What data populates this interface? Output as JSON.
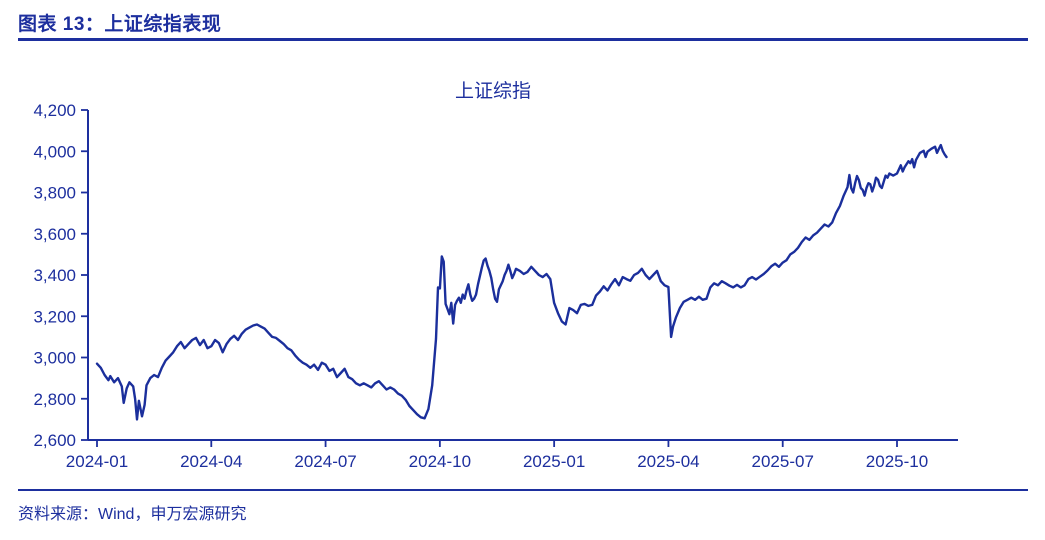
{
  "header": {
    "title": "图表 13：上证综指表现"
  },
  "footer": {
    "source": "资料来源：Wind，申万宏源研究"
  },
  "colors": {
    "navy": "#1d2f9e",
    "line": "#1b2f9c",
    "background": "#ffffff"
  },
  "chart_data": {
    "type": "line",
    "title": "上证综指",
    "series_name": "上证综指",
    "xlabel": "",
    "ylabel": "",
    "grid": false,
    "legend": "none",
    "ylim": [
      2600,
      4200
    ],
    "y_ticks": [
      2600,
      2800,
      3000,
      3200,
      3400,
      3600,
      3800,
      4000,
      4200
    ],
    "y_tick_labels": [
      "2,600",
      "2,800",
      "3,000",
      "3,200",
      "3,400",
      "3,600",
      "3,800",
      "4,000",
      "4,200"
    ],
    "x_tick_labels": [
      "2024-01",
      "2024-04",
      "2024-07",
      "2024-10",
      "2025-01",
      "2025-04",
      "2025-07",
      "2025-10"
    ],
    "x_tick_positions": [
      0,
      3,
      6,
      9,
      12,
      15,
      18,
      21
    ],
    "x_unit": "months_since_2024_01",
    "xlim": [
      0,
      22.6
    ],
    "points": [
      [
        0.0,
        2970
      ],
      [
        0.1,
        2950
      ],
      [
        0.2,
        2915
      ],
      [
        0.3,
        2890
      ],
      [
        0.35,
        2910
      ],
      [
        0.45,
        2880
      ],
      [
        0.55,
        2900
      ],
      [
        0.65,
        2860
      ],
      [
        0.7,
        2780
      ],
      [
        0.78,
        2850
      ],
      [
        0.85,
        2880
      ],
      [
        0.95,
        2860
      ],
      [
        1.0,
        2800
      ],
      [
        1.05,
        2700
      ],
      [
        1.1,
        2790
      ],
      [
        1.18,
        2715
      ],
      [
        1.25,
        2770
      ],
      [
        1.3,
        2865
      ],
      [
        1.4,
        2900
      ],
      [
        1.5,
        2915
      ],
      [
        1.6,
        2905
      ],
      [
        1.7,
        2950
      ],
      [
        1.8,
        2985
      ],
      [
        1.9,
        3005
      ],
      [
        2.0,
        3025
      ],
      [
        2.1,
        3055
      ],
      [
        2.2,
        3075
      ],
      [
        2.3,
        3045
      ],
      [
        2.4,
        3065
      ],
      [
        2.5,
        3085
      ],
      [
        2.6,
        3095
      ],
      [
        2.7,
        3060
      ],
      [
        2.8,
        3085
      ],
      [
        2.9,
        3045
      ],
      [
        3.0,
        3055
      ],
      [
        3.1,
        3085
      ],
      [
        3.2,
        3070
      ],
      [
        3.3,
        3025
      ],
      [
        3.4,
        3065
      ],
      [
        3.5,
        3090
      ],
      [
        3.6,
        3105
      ],
      [
        3.7,
        3085
      ],
      [
        3.8,
        3115
      ],
      [
        3.9,
        3135
      ],
      [
        4.0,
        3145
      ],
      [
        4.1,
        3155
      ],
      [
        4.2,
        3160
      ],
      [
        4.3,
        3150
      ],
      [
        4.4,
        3140
      ],
      [
        4.5,
        3120
      ],
      [
        4.6,
        3100
      ],
      [
        4.7,
        3095
      ],
      [
        4.8,
        3080
      ],
      [
        4.9,
        3065
      ],
      [
        5.0,
        3045
      ],
      [
        5.1,
        3035
      ],
      [
        5.2,
        3010
      ],
      [
        5.3,
        2990
      ],
      [
        5.4,
        2975
      ],
      [
        5.5,
        2965
      ],
      [
        5.6,
        2950
      ],
      [
        5.7,
        2965
      ],
      [
        5.8,
        2940
      ],
      [
        5.9,
        2975
      ],
      [
        6.0,
        2965
      ],
      [
        6.1,
        2935
      ],
      [
        6.2,
        2945
      ],
      [
        6.3,
        2905
      ],
      [
        6.4,
        2925
      ],
      [
        6.5,
        2945
      ],
      [
        6.6,
        2905
      ],
      [
        6.7,
        2895
      ],
      [
        6.8,
        2875
      ],
      [
        6.9,
        2865
      ],
      [
        7.0,
        2875
      ],
      [
        7.1,
        2865
      ],
      [
        7.2,
        2855
      ],
      [
        7.3,
        2875
      ],
      [
        7.4,
        2885
      ],
      [
        7.5,
        2865
      ],
      [
        7.6,
        2845
      ],
      [
        7.7,
        2855
      ],
      [
        7.8,
        2845
      ],
      [
        7.9,
        2825
      ],
      [
        8.0,
        2815
      ],
      [
        8.1,
        2795
      ],
      [
        8.2,
        2765
      ],
      [
        8.3,
        2745
      ],
      [
        8.4,
        2725
      ],
      [
        8.5,
        2710
      ],
      [
        8.6,
        2705
      ],
      [
        8.7,
        2750
      ],
      [
        8.8,
        2865
      ],
      [
        8.9,
        3090
      ],
      [
        8.95,
        3340
      ],
      [
        9.0,
        3335
      ],
      [
        9.05,
        3490
      ],
      [
        9.1,
        3465
      ],
      [
        9.15,
        3260
      ],
      [
        9.2,
        3235
      ],
      [
        9.25,
        3210
      ],
      [
        9.3,
        3265
      ],
      [
        9.35,
        3165
      ],
      [
        9.4,
        3255
      ],
      [
        9.45,
        3275
      ],
      [
        9.5,
        3290
      ],
      [
        9.55,
        3265
      ],
      [
        9.6,
        3305
      ],
      [
        9.65,
        3285
      ],
      [
        9.7,
        3325
      ],
      [
        9.75,
        3355
      ],
      [
        9.8,
        3305
      ],
      [
        9.85,
        3275
      ],
      [
        9.9,
        3285
      ],
      [
        9.95,
        3305
      ],
      [
        10.0,
        3355
      ],
      [
        10.1,
        3435
      ],
      [
        10.15,
        3470
      ],
      [
        10.2,
        3480
      ],
      [
        10.25,
        3445
      ],
      [
        10.3,
        3420
      ],
      [
        10.35,
        3385
      ],
      [
        10.4,
        3330
      ],
      [
        10.45,
        3285
      ],
      [
        10.5,
        3270
      ],
      [
        10.55,
        3330
      ],
      [
        10.6,
        3350
      ],
      [
        10.65,
        3370
      ],
      [
        10.7,
        3400
      ],
      [
        10.75,
        3420
      ],
      [
        10.8,
        3450
      ],
      [
        10.85,
        3420
      ],
      [
        10.9,
        3385
      ],
      [
        10.95,
        3405
      ],
      [
        11.0,
        3430
      ],
      [
        11.1,
        3420
      ],
      [
        11.2,
        3405
      ],
      [
        11.3,
        3415
      ],
      [
        11.4,
        3440
      ],
      [
        11.5,
        3420
      ],
      [
        11.6,
        3400
      ],
      [
        11.7,
        3390
      ],
      [
        11.8,
        3405
      ],
      [
        11.9,
        3380
      ],
      [
        12.0,
        3265
      ],
      [
        12.1,
        3215
      ],
      [
        12.2,
        3175
      ],
      [
        12.3,
        3160
      ],
      [
        12.4,
        3240
      ],
      [
        12.5,
        3230
      ],
      [
        12.6,
        3215
      ],
      [
        12.7,
        3255
      ],
      [
        12.8,
        3260
      ],
      [
        12.9,
        3250
      ],
      [
        13.0,
        3255
      ],
      [
        13.1,
        3300
      ],
      [
        13.2,
        3320
      ],
      [
        13.3,
        3345
      ],
      [
        13.4,
        3325
      ],
      [
        13.5,
        3355
      ],
      [
        13.6,
        3380
      ],
      [
        13.7,
        3350
      ],
      [
        13.8,
        3390
      ],
      [
        13.9,
        3380
      ],
      [
        14.0,
        3372
      ],
      [
        14.1,
        3400
      ],
      [
        14.2,
        3410
      ],
      [
        14.3,
        3430
      ],
      [
        14.4,
        3400
      ],
      [
        14.5,
        3380
      ],
      [
        14.6,
        3400
      ],
      [
        14.7,
        3420
      ],
      [
        14.8,
        3370
      ],
      [
        14.9,
        3350
      ],
      [
        15.0,
        3342
      ],
      [
        15.07,
        3100
      ],
      [
        15.12,
        3150
      ],
      [
        15.2,
        3195
      ],
      [
        15.3,
        3240
      ],
      [
        15.4,
        3270
      ],
      [
        15.5,
        3280
      ],
      [
        15.6,
        3290
      ],
      [
        15.7,
        3280
      ],
      [
        15.8,
        3295
      ],
      [
        15.9,
        3280
      ],
      [
        16.0,
        3285
      ],
      [
        16.1,
        3340
      ],
      [
        16.2,
        3360
      ],
      [
        16.3,
        3350
      ],
      [
        16.4,
        3370
      ],
      [
        16.5,
        3360
      ],
      [
        16.6,
        3348
      ],
      [
        16.7,
        3340
      ],
      [
        16.8,
        3352
      ],
      [
        16.9,
        3340
      ],
      [
        17.0,
        3350
      ],
      [
        17.1,
        3380
      ],
      [
        17.2,
        3390
      ],
      [
        17.3,
        3378
      ],
      [
        17.4,
        3392
      ],
      [
        17.5,
        3405
      ],
      [
        17.6,
        3422
      ],
      [
        17.7,
        3442
      ],
      [
        17.8,
        3455
      ],
      [
        17.9,
        3440
      ],
      [
        18.0,
        3460
      ],
      [
        18.1,
        3472
      ],
      [
        18.2,
        3500
      ],
      [
        18.3,
        3512
      ],
      [
        18.4,
        3532
      ],
      [
        18.5,
        3560
      ],
      [
        18.6,
        3582
      ],
      [
        18.7,
        3570
      ],
      [
        18.8,
        3592
      ],
      [
        18.9,
        3605
      ],
      [
        19.0,
        3625
      ],
      [
        19.1,
        3645
      ],
      [
        19.2,
        3635
      ],
      [
        19.3,
        3655
      ],
      [
        19.4,
        3700
      ],
      [
        19.5,
        3735
      ],
      [
        19.6,
        3785
      ],
      [
        19.7,
        3825
      ],
      [
        19.75,
        3885
      ],
      [
        19.8,
        3820
      ],
      [
        19.85,
        3800
      ],
      [
        19.9,
        3845
      ],
      [
        19.95,
        3880
      ],
      [
        20.0,
        3860
      ],
      [
        20.05,
        3822
      ],
      [
        20.1,
        3812
      ],
      [
        20.15,
        3785
      ],
      [
        20.2,
        3822
      ],
      [
        20.25,
        3845
      ],
      [
        20.3,
        3840
      ],
      [
        20.35,
        3805
      ],
      [
        20.4,
        3832
      ],
      [
        20.45,
        3872
      ],
      [
        20.5,
        3862
      ],
      [
        20.55,
        3832
      ],
      [
        20.6,
        3822
      ],
      [
        20.65,
        3852
      ],
      [
        20.7,
        3882
      ],
      [
        20.75,
        3872
      ],
      [
        20.8,
        3892
      ],
      [
        20.9,
        3882
      ],
      [
        21.0,
        3892
      ],
      [
        21.1,
        3932
      ],
      [
        21.15,
        3902
      ],
      [
        21.2,
        3922
      ],
      [
        21.3,
        3952
      ],
      [
        21.35,
        3942
      ],
      [
        21.4,
        3962
      ],
      [
        21.45,
        3922
      ],
      [
        21.5,
        3958
      ],
      [
        21.6,
        3992
      ],
      [
        21.7,
        4002
      ],
      [
        21.75,
        3972
      ],
      [
        21.8,
        3998
      ],
      [
        21.9,
        4012
      ],
      [
        22.0,
        4022
      ],
      [
        22.05,
        3992
      ],
      [
        22.1,
        4012
      ],
      [
        22.15,
        4030
      ],
      [
        22.2,
        4002
      ],
      [
        22.25,
        3985
      ],
      [
        22.3,
        3972
      ]
    ]
  }
}
